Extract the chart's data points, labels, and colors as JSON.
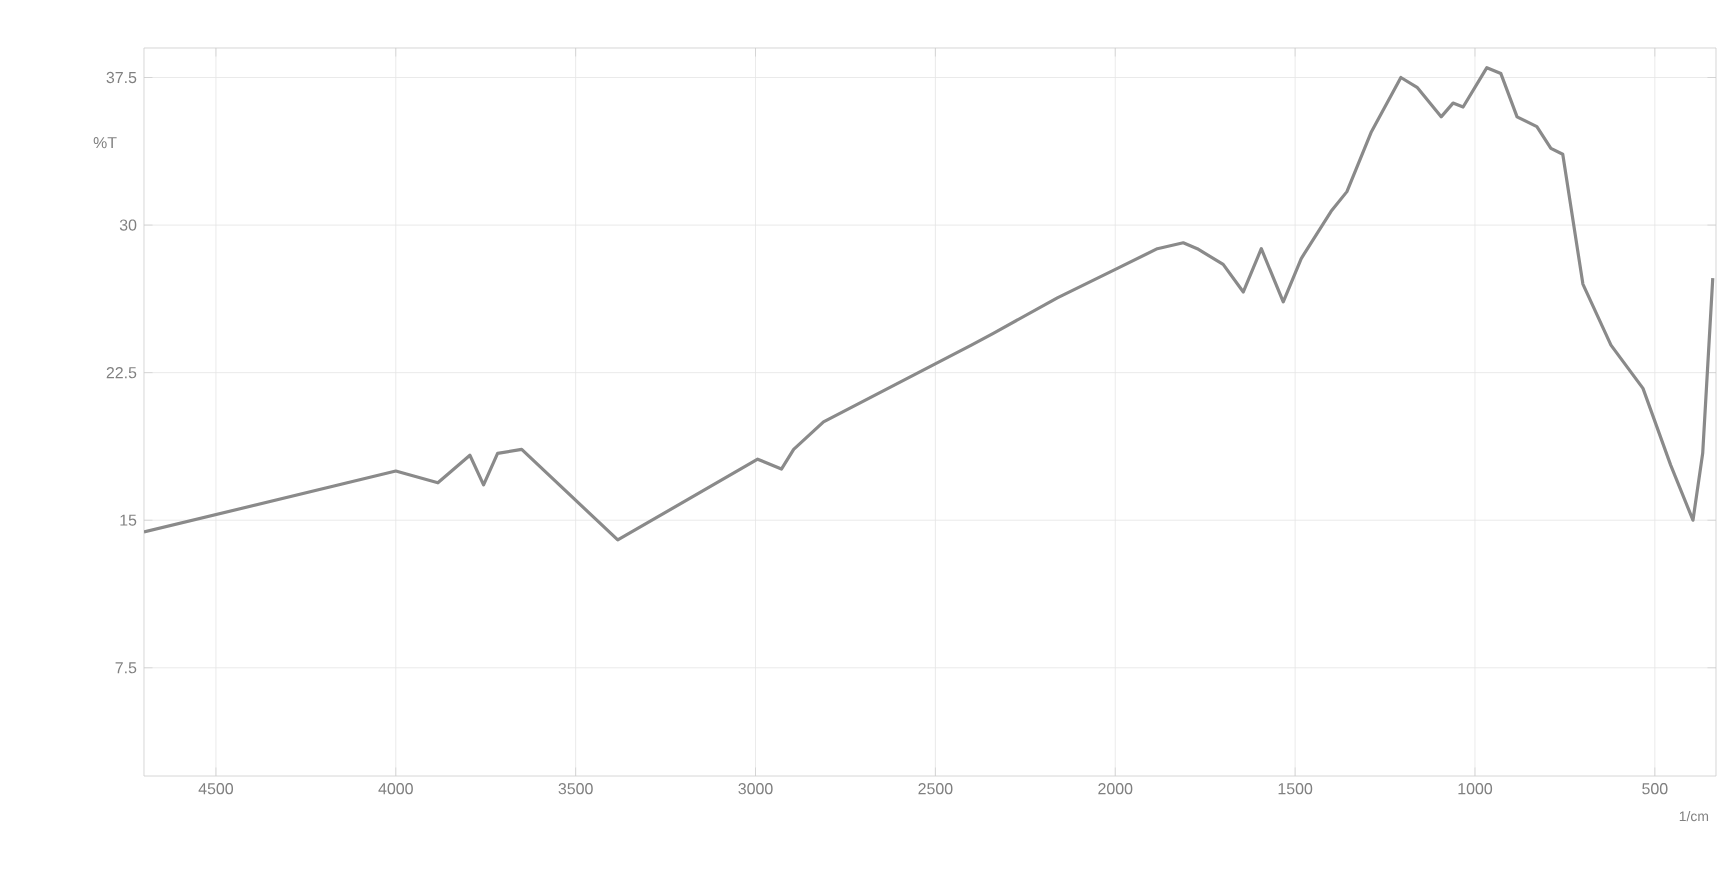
{
  "chart_data": {
    "type": "line",
    "xlabel": "1/cm",
    "ylabel": "%T",
    "x": [
      4700,
      4000,
      3883,
      3794,
      3756,
      3717,
      3650,
      3383,
      2994,
      2928,
      2894,
      2811,
      2400,
      2339,
      2161,
      1994,
      1883,
      1811,
      1772,
      1700,
      1644,
      1594,
      1533,
      1483,
      1400,
      1356,
      1289,
      1206,
      1161,
      1094,
      1061,
      1033,
      967,
      928,
      883,
      828,
      789,
      756,
      700,
      622,
      533,
      456,
      394,
      367,
      339
    ],
    "series": [
      {
        "color": "#8a8a8a",
        "values": [
          14.4,
          17.5,
          16.9,
          18.3,
          16.8,
          18.4,
          18.6,
          14.0,
          18.1,
          17.6,
          18.6,
          20.0,
          23.9,
          24.5,
          26.3,
          27.8,
          28.8,
          29.1,
          28.8,
          28.0,
          26.6,
          28.8,
          26.1,
          28.3,
          30.7,
          31.7,
          34.7,
          37.5,
          37.0,
          35.5,
          36.2,
          36.0,
          38.0,
          37.7,
          35.5,
          35.0,
          33.9,
          33.6,
          27.0,
          23.9,
          21.7,
          17.8,
          15.0,
          18.4,
          27.3
        ]
      }
    ],
    "xlim": [
      4700,
      330
    ],
    "ylim": [
      2,
      39
    ],
    "xticks": [
      4500,
      4000,
      3500,
      3000,
      2500,
      2000,
      1500,
      1000,
      500
    ],
    "yticks": [
      7.5,
      15,
      22.5,
      30,
      37.5
    ],
    "grid": true,
    "marker": "none",
    "line_style": "solid"
  }
}
